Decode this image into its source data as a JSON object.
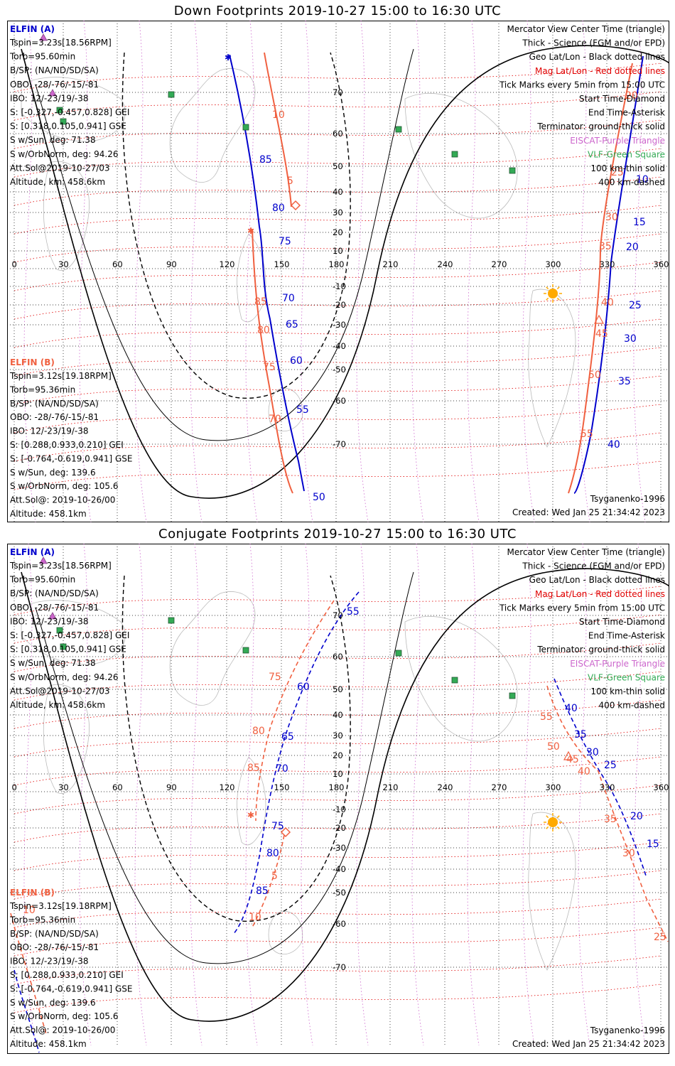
{
  "panels": [
    {
      "title": "Down Footprints 2019-10-27 15:00 to 16:30 UTC",
      "elfin_a": {
        "name": "ELFIN (A)",
        "lines": [
          "Tspin=3.23s[18.56RPM]",
          "Torb=95.60min",
          "B/SP: (NA/ND/SD/SA)",
          "OBO: -28/-76/-15/-81",
          "IBO: 12/-23/19/-38",
          "S: [-0.327,-0.457,0.828] GEI",
          "S: [0.318,0.105,0.941] GSE",
          "S w/Sun, deg: 71.38",
          "S w/OrbNorm, deg: 94.26",
          "Att.Sol@2019-10-27/03",
          "Altitude, km: 458.6km"
        ]
      },
      "elfin_b": {
        "name": "ELFIN (B)",
        "lines": [
          "Tspin=3.12s[19.18RPM]",
          "Torb=95.36min",
          "B/SP: (NA/ND/SD/SA)",
          "OBO: -28/-76/-15/-81",
          "IBO: 12/-23/19/-38",
          "S: [0.288,0.933,0.210] GEI",
          "S: [-0.764,-0.619,0.941] GSE",
          "S w/Sun, deg: 139.6",
          "S w/OrbNorm, deg: 105.6",
          "Att.Sol@: 2019-10-26/00",
          "Altitude: 458.1km"
        ]
      },
      "legend": [
        "Mercator View Center Time (triangle)",
        "Thick - Science (FGM and/or EPD)",
        "Geo Lat/Lon - Black dotted lines",
        "Mag Lat/Lon - Red dotted lines",
        "Tick Marks every 5min from 15:00 UTC",
        "Start Time-Diamond",
        "End Time-Asterisk",
        "Terminator: ground-thick solid",
        "EISCAT-Purple Triangle",
        "VLF-Green Square",
        "100 km-thin solid",
        "400 km-dashed"
      ],
      "model": "Tsyganenko-1996",
      "created": "Created: Wed Jan 25 21:34:42 2023",
      "ticks_a": [
        [
          "85",
          355,
          200
        ],
        [
          "80",
          373,
          268
        ],
        [
          "75",
          382,
          315
        ],
        [
          "70",
          387,
          395
        ],
        [
          "65",
          392,
          432
        ],
        [
          "60",
          398,
          483
        ],
        [
          "55",
          407,
          552
        ],
        [
          "50",
          430,
          675
        ],
        [
          "10",
          885,
          228
        ],
        [
          "15",
          881,
          288
        ],
        [
          "20",
          871,
          323
        ],
        [
          "25",
          875,
          405
        ],
        [
          "30",
          868,
          452
        ],
        [
          "35",
          860,
          512
        ],
        [
          "40",
          845,
          601
        ]
      ],
      "ticks_b": [
        [
          "10",
          373,
          137
        ],
        [
          "5",
          394,
          230
        ],
        [
          "85",
          348,
          400
        ],
        [
          "80",
          352,
          440
        ],
        [
          "75",
          360,
          492
        ],
        [
          "70",
          368,
          565
        ],
        [
          "20",
          870,
          110
        ],
        [
          "25",
          850,
          218
        ],
        [
          "30",
          842,
          281
        ],
        [
          "35",
          833,
          322
        ],
        [
          "40",
          836,
          401
        ],
        [
          "45",
          828,
          445
        ],
        [
          "50",
          818,
          503
        ],
        [
          "55",
          807,
          586
        ]
      ]
    },
    {
      "title": "Conjugate Footprints 2019-10-27 15:00 to 16:30 UTC",
      "elfin_a": {
        "name": "ELFIN (A)",
        "lines": [
          "Tspin=3.23s[18.56RPM]",
          "Torb=95.60min",
          "B/SP: (NA/ND/SD/SA)",
          "OBO: -28/-76/-15/-81",
          "IBO: 12/-23/19/-38",
          "S: [-0.327,-0.457,0.828] GEI",
          "S: [0.318,0.105,0.941] GSE",
          "S w/Sun, deg: 71.38",
          "S w/OrbNorm, deg: 94.26",
          "Att.Sol@2019-10-27/03",
          "Altitude, km: 458.6km"
        ]
      },
      "elfin_b": {
        "name": "ELFIN (B)",
        "lines": [
          "Tspin=3.12s[19.18RPM]",
          "Torb=95.36min",
          "B/SP: (NA/ND/SD/SA)",
          "OBO: -28/-76/-15/-81",
          "IBO: 12/-23/19/-38",
          "S: [0.288,0.933,0.210] GEI",
          "S: [-0.764,-0.619,0.941] GSE",
          "S w/Sun, deg: 139.6",
          "S w/OrbNorm, deg: 105.6",
          "Att.Sol@: 2019-10-26/00",
          "Altitude: 458.1km"
        ]
      },
      "legend": [
        "Mercator View Center Time (triangle)",
        "Thick - Science (FGM and/or EPD)",
        "Geo Lat/Lon - Black dotted lines",
        "Mag Lat/Lon - Red dotted lines",
        "Tick Marks every 5min from 15:00 UTC",
        "Start Time-Diamond",
        "End Time-Asterisk",
        "Terminator: ground-thick solid",
        "EISCAT-Purple Triangle",
        "VLF-Green Square",
        "100 km-thin solid",
        "400 km-dashed"
      ],
      "model": "Tsyganenko-1996",
      "created": "Created: Wed Jan 25 21:34:42 2023",
      "ticks_a": [
        [
          "55",
          478,
          100
        ],
        [
          "60",
          408,
          206
        ],
        [
          "65",
          386,
          276
        ],
        [
          "70",
          378,
          321
        ],
        [
          "75",
          372,
          402
        ],
        [
          "80",
          365,
          440
        ],
        [
          "85",
          350,
          493
        ],
        [
          "40",
          785,
          236
        ],
        [
          "35",
          798,
          273
        ],
        [
          "30",
          815,
          298
        ],
        [
          "25",
          840,
          316
        ],
        [
          "20",
          877,
          388
        ],
        [
          "15",
          900,
          427
        ]
      ],
      "ticks_b": [
        [
          "75",
          368,
          192
        ],
        [
          "80",
          345,
          268
        ],
        [
          "85",
          338,
          320
        ],
        [
          "10",
          340,
          530
        ],
        [
          "5",
          372,
          472
        ],
        [
          "40",
          803,
          325
        ],
        [
          "45",
          787,
          308
        ],
        [
          "50",
          760,
          290
        ],
        [
          "55",
          750,
          248
        ],
        [
          "35",
          840,
          392
        ],
        [
          "30",
          866,
          440
        ],
        [
          "25",
          910,
          558
        ],
        [
          "10",
          22,
          520
        ]
      ]
    }
  ],
  "axes": {
    "lon_labels": [
      "0",
      "30",
      "60",
      "90",
      "120",
      "150",
      "180",
      "210",
      "240",
      "270",
      "300",
      "330",
      "360"
    ],
    "lat_labels": [
      "70",
      "60",
      "50",
      "40",
      "30",
      "20",
      "10",
      "-10",
      "-20",
      "-30",
      "-40",
      "-50",
      "-60",
      "-70"
    ]
  },
  "colors": {
    "elfin_a": "#0000cc",
    "elfin_b": "#f06040",
    "mag_grid": "#e00000",
    "geo_grid": "#000000",
    "eiscat": "#cc66cc",
    "vlf": "#33aa55",
    "sun": "#ffaa00"
  }
}
